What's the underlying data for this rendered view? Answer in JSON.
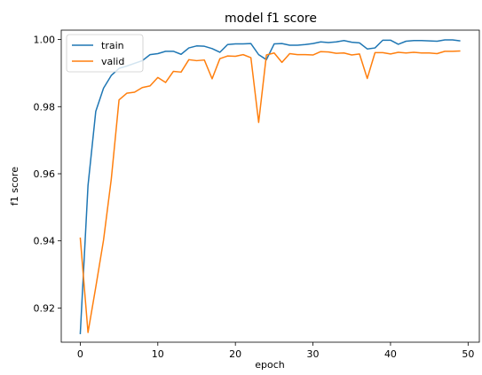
{
  "chart_data": {
    "type": "line",
    "title": "model f1 score",
    "xlabel": "epoch",
    "ylabel": "f1 score",
    "xlim": [
      -2.45,
      51.45
    ],
    "ylim": [
      0.9098,
      1.0028
    ],
    "xticks": [
      0,
      10,
      20,
      30,
      40,
      50
    ],
    "yticks": [
      0.92,
      0.94,
      0.96,
      0.98,
      1.0
    ],
    "ytick_labels": [
      "0.92",
      "0.94",
      "0.96",
      "0.98",
      "1.00"
    ],
    "grid": false,
    "legend": "top-left",
    "series": [
      {
        "name": "train",
        "color": "#1f77b4",
        "x": [
          0,
          1,
          2,
          3,
          4,
          5,
          6,
          7,
          8,
          9,
          10,
          11,
          12,
          13,
          14,
          15,
          16,
          17,
          18,
          19,
          20,
          21,
          22,
          23,
          24,
          25,
          26,
          27,
          28,
          29,
          30,
          31,
          32,
          33,
          34,
          35,
          36,
          37,
          38,
          39,
          40,
          41,
          42,
          43,
          44,
          45,
          46,
          47,
          48,
          49
        ],
        "values": [
          0.9122,
          0.9565,
          0.9786,
          0.9855,
          0.9893,
          0.9914,
          0.9921,
          0.9929,
          0.9937,
          0.9955,
          0.9958,
          0.9965,
          0.9965,
          0.9956,
          0.9975,
          0.9981,
          0.998,
          0.9973,
          0.9962,
          0.9985,
          0.9987,
          0.9987,
          0.9988,
          0.9955,
          0.994,
          0.9987,
          0.9988,
          0.9983,
          0.9983,
          0.9985,
          0.9988,
          0.9993,
          0.9991,
          0.9993,
          0.9997,
          0.9992,
          0.999,
          0.9972,
          0.9975,
          0.9998,
          0.9998,
          0.9986,
          0.9995,
          0.9997,
          0.9997,
          0.9996,
          0.9995,
          0.9999,
          0.9999,
          0.9996
        ]
      },
      {
        "name": "valid",
        "color": "#ff7f0e",
        "x": [
          0,
          1,
          2,
          3,
          4,
          5,
          6,
          7,
          8,
          9,
          10,
          11,
          12,
          13,
          14,
          15,
          16,
          17,
          18,
          19,
          20,
          21,
          22,
          23,
          24,
          25,
          26,
          27,
          28,
          29,
          30,
          31,
          32,
          33,
          34,
          35,
          36,
          37,
          38,
          39,
          40,
          41,
          42,
          43,
          44,
          45,
          46,
          47,
          48,
          49
        ],
        "values": [
          0.941,
          0.9127,
          0.9262,
          0.9402,
          0.9584,
          0.982,
          0.984,
          0.9843,
          0.9857,
          0.9862,
          0.9887,
          0.9872,
          0.9905,
          0.9903,
          0.994,
          0.9937,
          0.9939,
          0.9883,
          0.9943,
          0.9951,
          0.995,
          0.9955,
          0.9946,
          0.9753,
          0.9954,
          0.996,
          0.9932,
          0.9958,
          0.9955,
          0.9955,
          0.9954,
          0.9964,
          0.9963,
          0.9959,
          0.996,
          0.9954,
          0.9957,
          0.9884,
          0.9961,
          0.9961,
          0.9957,
          0.9962,
          0.996,
          0.9962,
          0.996,
          0.996,
          0.9958,
          0.9965,
          0.9965,
          0.9966
        ]
      }
    ]
  }
}
